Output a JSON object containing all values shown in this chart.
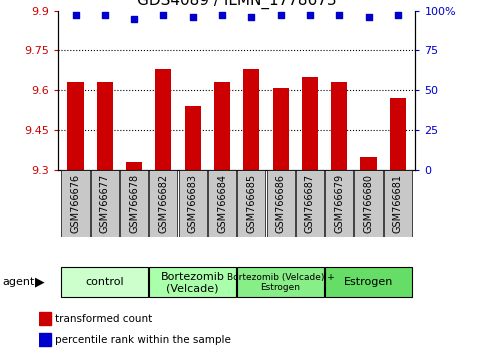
{
  "title": "GDS4089 / ILMN_1778673",
  "samples": [
    "GSM766676",
    "GSM766677",
    "GSM766678",
    "GSM766682",
    "GSM766683",
    "GSM766684",
    "GSM766685",
    "GSM766686",
    "GSM766687",
    "GSM766679",
    "GSM766680",
    "GSM766681"
  ],
  "bar_values": [
    9.63,
    9.63,
    9.33,
    9.68,
    9.54,
    9.63,
    9.68,
    9.61,
    9.65,
    9.63,
    9.35,
    9.57
  ],
  "percentile_values": [
    97,
    97,
    95,
    97,
    96,
    97,
    96,
    97,
    97,
    97,
    96,
    97
  ],
  "bar_color": "#cc0000",
  "dot_color": "#0000cc",
  "ylim_left": [
    9.3,
    9.9
  ],
  "ylim_right": [
    0,
    100
  ],
  "yticks_left": [
    9.3,
    9.45,
    9.6,
    9.75,
    9.9
  ],
  "yticks_right": [
    0,
    25,
    50,
    75,
    100
  ],
  "grid_ticks": [
    9.45,
    9.6,
    9.75
  ],
  "groups": [
    {
      "label": "control",
      "start": 0,
      "end": 3
    },
    {
      "label": "Bortezomib\n(Velcade)",
      "start": 3,
      "end": 6
    },
    {
      "label": "Bortezomib (Velcade) +\nEstrogen",
      "start": 6,
      "end": 9
    },
    {
      "label": "Estrogen",
      "start": 9,
      "end": 12
    }
  ],
  "group_colors": [
    "#ccffcc",
    "#aaffaa",
    "#88ee88",
    "#66dd66"
  ],
  "agent_label": "agent",
  "legend_bar_label": "transformed count",
  "legend_dot_label": "percentile rank within the sample",
  "background_color": "#ffffff",
  "title_fontsize": 11,
  "tick_label_fontsize": 7,
  "axis_tick_fontsize": 8,
  "sample_box_color": "#c8c8c8",
  "bar_width": 0.55
}
